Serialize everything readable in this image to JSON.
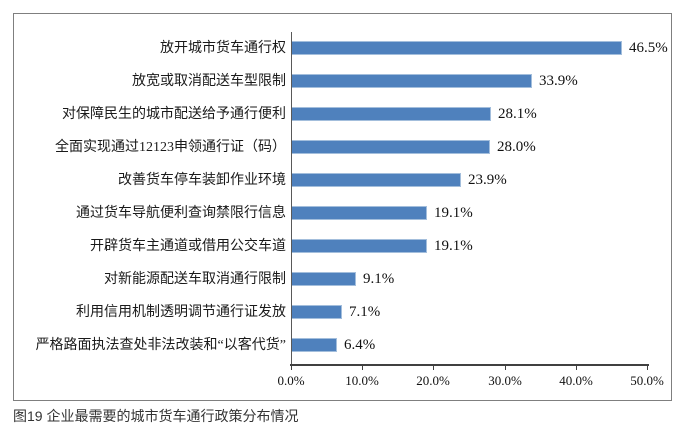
{
  "caption": "图19 企业最需要的城市货车通行政策分布情况",
  "chart_data": {
    "type": "bar",
    "orientation": "horizontal",
    "title": "",
    "xlabel": "",
    "ylabel": "",
    "categories": [
      "放开城市货车通行权",
      "放宽或取消配送车型限制",
      "对保障民生的城市配送给予通行便利",
      "全面实现通过12123申领通行证（码）",
      "改善货车停车装卸作业环境",
      "通过货车导航便利查询禁限行信息",
      "开辟货车主通道或借用公交车道",
      "对新能源配送车取消通行限制",
      "利用信用机制透明调节通行证发放",
      "严格路面执法查处非法改装和“以客代货”"
    ],
    "values": [
      46.5,
      33.9,
      28.1,
      28.0,
      23.9,
      19.1,
      19.1,
      9.1,
      7.1,
      6.4
    ],
    "value_labels": [
      "46.5%",
      "33.9%",
      "28.1%",
      "28.0%",
      "23.9%",
      "19.1%",
      "19.1%",
      "9.1%",
      "7.1%",
      "6.4%"
    ],
    "x_ticks": [
      "0.0%",
      "10.0%",
      "20.0%",
      "30.0%",
      "40.0%",
      "50.0%"
    ],
    "xlim": [
      0,
      50
    ],
    "grid": false,
    "legend": null,
    "bar_color": "#4F81BD",
    "bar_border_color": "#A3BEDC",
    "axis_color": "#404040",
    "plot_border_color": "#7f7f7f"
  }
}
